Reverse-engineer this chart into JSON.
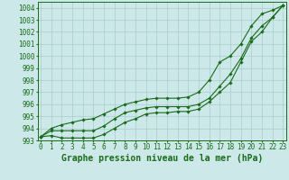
{
  "title": "Graphe pression niveau de la mer (hPa)",
  "xlabel_hours": [
    0,
    1,
    2,
    3,
    4,
    5,
    6,
    7,
    8,
    9,
    10,
    11,
    12,
    13,
    14,
    15,
    16,
    17,
    18,
    19,
    20,
    21,
    22,
    23
  ],
  "line1": [
    993.3,
    993.4,
    993.2,
    993.2,
    993.2,
    993.2,
    993.5,
    994.0,
    994.5,
    994.8,
    995.2,
    995.3,
    995.3,
    995.4,
    995.4,
    995.6,
    996.2,
    997.0,
    997.8,
    999.5,
    1001.2,
    1002.0,
    1003.2,
    1004.2
  ],
  "line2": [
    993.3,
    993.8,
    993.8,
    993.8,
    993.8,
    993.8,
    994.2,
    994.8,
    995.3,
    995.5,
    995.7,
    995.8,
    995.8,
    995.8,
    995.8,
    996.0,
    996.5,
    997.5,
    998.5,
    999.8,
    1001.5,
    1002.5,
    1003.2,
    1004.2
  ],
  "line3": [
    993.3,
    994.0,
    994.3,
    994.5,
    994.7,
    994.8,
    995.2,
    995.6,
    996.0,
    996.2,
    996.4,
    996.5,
    996.5,
    996.5,
    996.6,
    997.0,
    998.0,
    999.5,
    1000.0,
    1001.0,
    1002.5,
    1003.5,
    1003.8,
    1004.2
  ],
  "line_color": "#1a6b1a",
  "bg_color": "#cce8e8",
  "grid_color": "#a8cccc",
  "ylim_min": 993.0,
  "ylim_max": 1004.5,
  "yticks": [
    993,
    994,
    995,
    996,
    997,
    998,
    999,
    1000,
    1001,
    1002,
    1003,
    1004
  ],
  "marker": "D",
  "marker_size": 1.8,
  "line_width": 0.8,
  "title_fontsize": 7.0,
  "tick_fontsize": 5.5
}
